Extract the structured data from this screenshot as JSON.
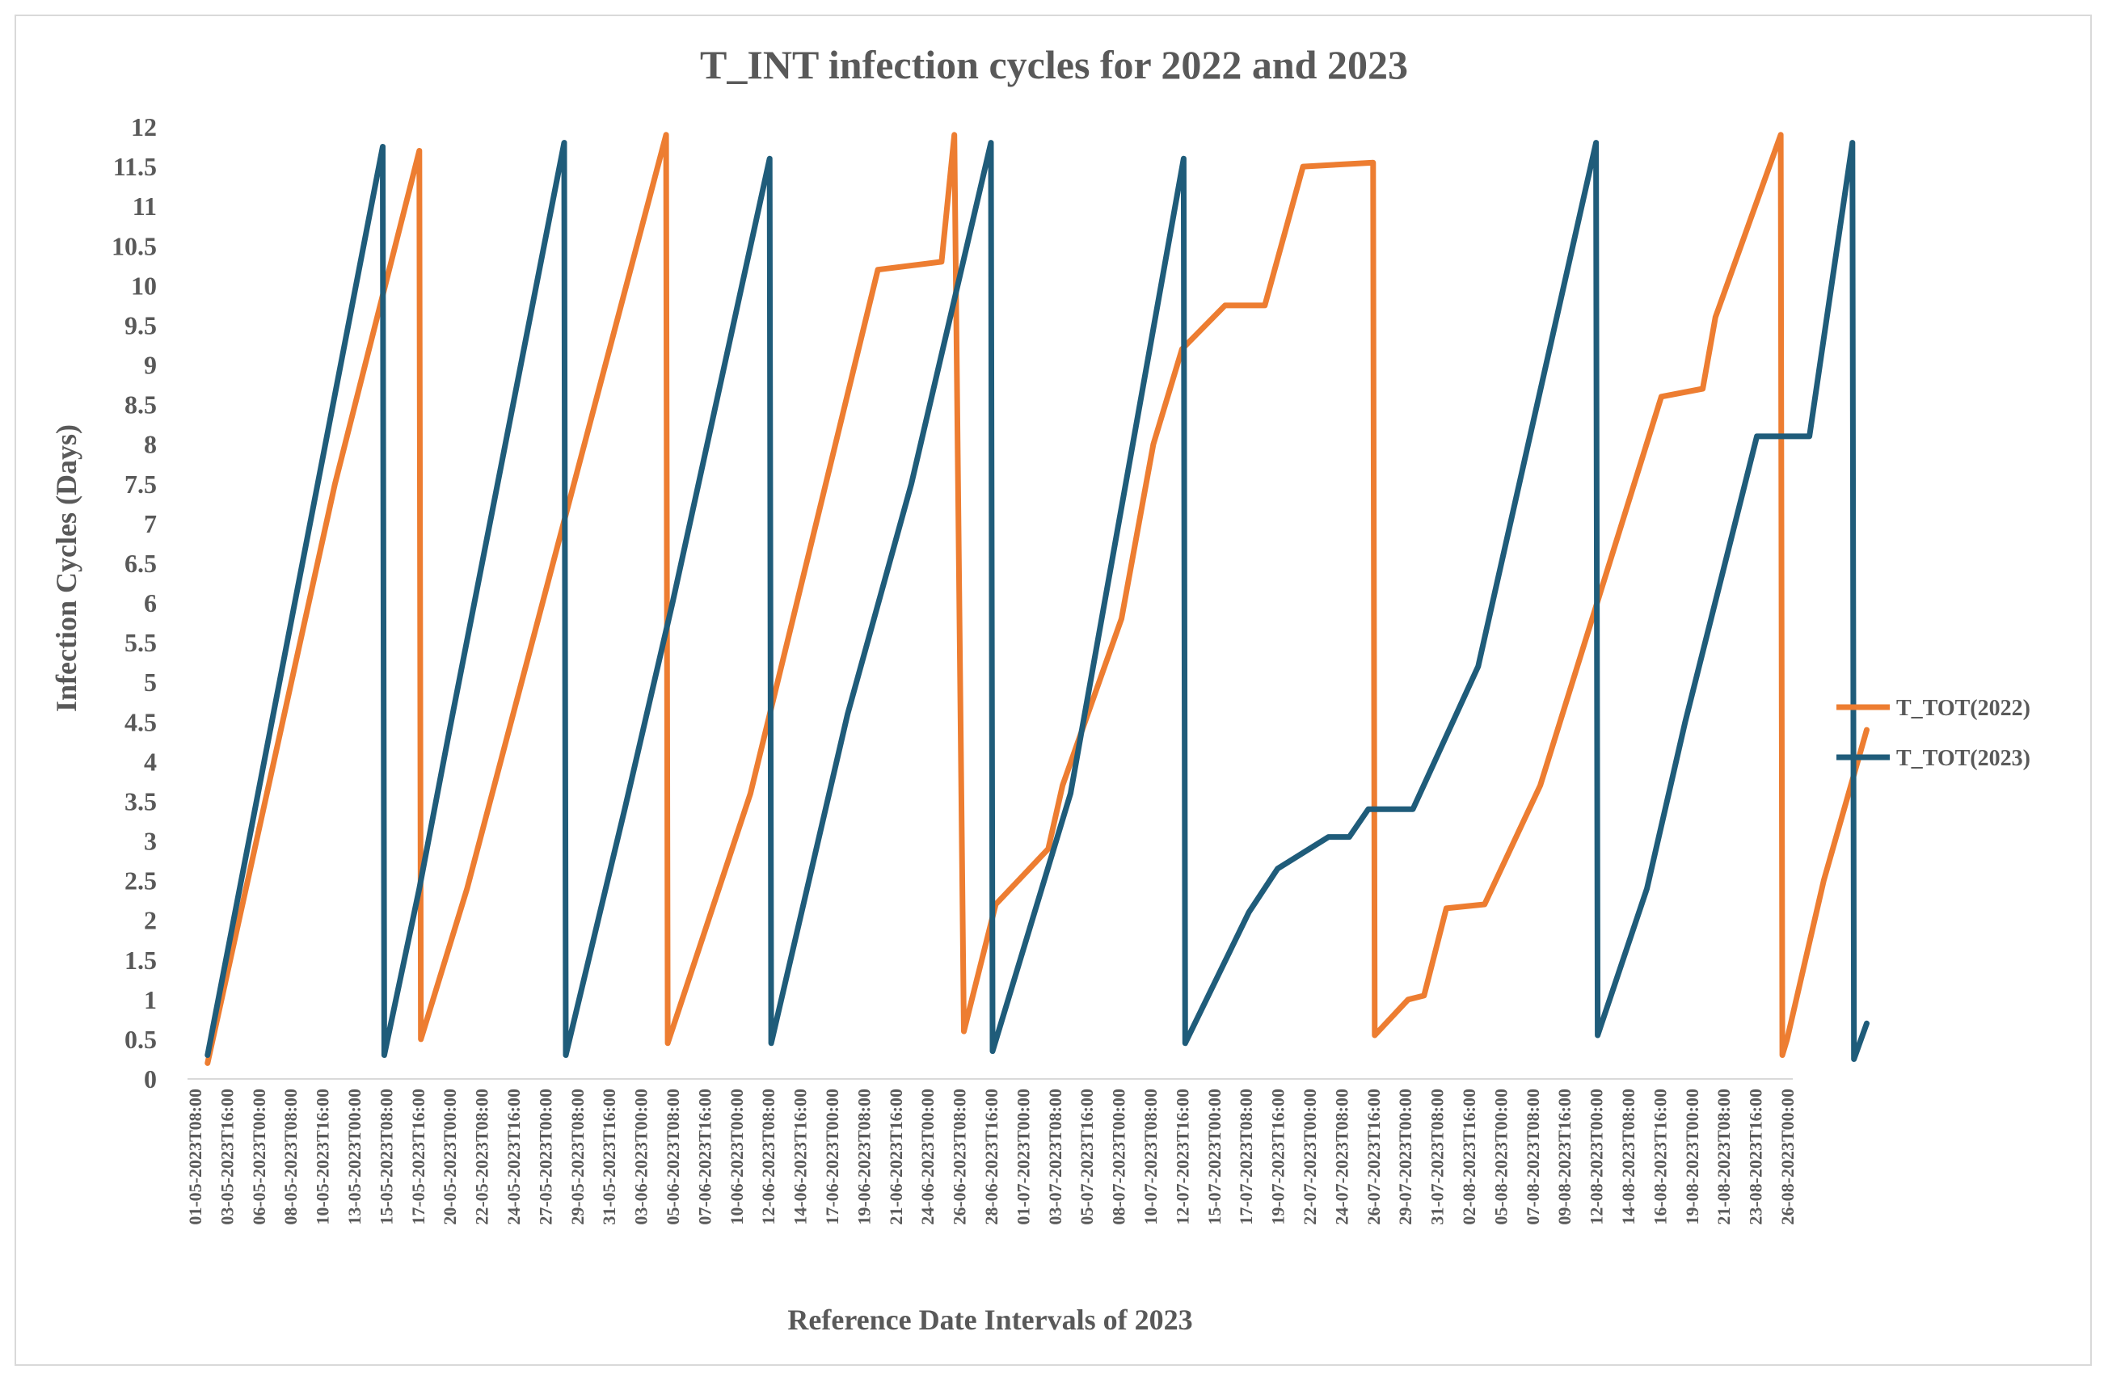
{
  "chart_data": {
    "type": "line",
    "title": "T_INT infection cycles for 2022 and 2023",
    "xlabel": "Reference Date Intervals of 2023",
    "ylabel": "Infection Cycles (Days)",
    "ylim": [
      0,
      12
    ],
    "yticks": [
      "0",
      "0.5",
      "1",
      "1.5",
      "2",
      "2.5",
      "3",
      "3.5",
      "4",
      "4.5",
      "5",
      "5.5",
      "6",
      "6.5",
      "7",
      "7.5",
      "8",
      "8.5",
      "9",
      "9.5",
      "10",
      "10.5",
      "11",
      "11.5",
      "12"
    ],
    "grid": false,
    "legend_position": "right",
    "x_domain": [
      0,
      100
    ],
    "x_ticks": [
      {
        "x": 0,
        "label": "01-05-2023T08:00"
      },
      {
        "x": 2,
        "label": "03-05-2023T16:00"
      },
      {
        "x": 4,
        "label": "06-05-2023T00:00"
      },
      {
        "x": 6,
        "label": "08-05-2023T08:00"
      },
      {
        "x": 8,
        "label": "10-05-2023T16:00"
      },
      {
        "x": 10,
        "label": "13-05-2023T00:00"
      },
      {
        "x": 12,
        "label": "15-05-2023T08:00"
      },
      {
        "x": 14,
        "label": "17-05-2023T16:00"
      },
      {
        "x": 16,
        "label": "20-05-2023T00:00"
      },
      {
        "x": 18,
        "label": "22-05-2023T08:00"
      },
      {
        "x": 20,
        "label": "24-05-2023T16:00"
      },
      {
        "x": 22,
        "label": "27-05-2023T00:00"
      },
      {
        "x": 24,
        "label": "29-05-2023T08:00"
      },
      {
        "x": 26,
        "label": "31-05-2023T16:00"
      },
      {
        "x": 28,
        "label": "03-06-2023T00:00"
      },
      {
        "x": 30,
        "label": "05-06-2023T08:00"
      },
      {
        "x": 32,
        "label": "07-06-2023T16:00"
      },
      {
        "x": 34,
        "label": "10-06-2023T00:00"
      },
      {
        "x": 36,
        "label": "12-06-2023T08:00"
      },
      {
        "x": 38,
        "label": "14-06-2023T16:00"
      },
      {
        "x": 40,
        "label": "17-06-2023T00:00"
      },
      {
        "x": 42,
        "label": "19-06-2023T08:00"
      },
      {
        "x": 44,
        "label": "21-06-2023T16:00"
      },
      {
        "x": 46,
        "label": "24-06-2023T00:00"
      },
      {
        "x": 48,
        "label": "26-06-2023T08:00"
      },
      {
        "x": 50,
        "label": "28-06-2023T16:00"
      },
      {
        "x": 52,
        "label": "01-07-2023T00:00"
      },
      {
        "x": 54,
        "label": "03-07-2023T08:00"
      },
      {
        "x": 56,
        "label": "05-07-2023T16:00"
      },
      {
        "x": 58,
        "label": "08-07-2023T00:00"
      },
      {
        "x": 60,
        "label": "10-07-2023T08:00"
      },
      {
        "x": 62,
        "label": "12-07-2023T16:00"
      },
      {
        "x": 64,
        "label": "15-07-2023T00:00"
      },
      {
        "x": 66,
        "label": "17-07-2023T08:00"
      },
      {
        "x": 68,
        "label": "19-07-2023T16:00"
      },
      {
        "x": 70,
        "label": "22-07-2023T00:00"
      },
      {
        "x": 72,
        "label": "24-07-2023T08:00"
      },
      {
        "x": 74,
        "label": "26-07-2023T16:00"
      },
      {
        "x": 76,
        "label": "29-07-2023T00:00"
      },
      {
        "x": 78,
        "label": "31-07-2023T08:00"
      },
      {
        "x": 80,
        "label": "02-08-2023T16:00"
      },
      {
        "x": 82,
        "label": "05-08-2023T00:00"
      },
      {
        "x": 84,
        "label": "07-08-2023T08:00"
      },
      {
        "x": 86,
        "label": "09-08-2023T16:00"
      },
      {
        "x": 88,
        "label": "12-08-2023T00:00"
      },
      {
        "x": 90,
        "label": "14-08-2023T08:00"
      },
      {
        "x": 92,
        "label": "16-08-2023T16:00"
      },
      {
        "x": 94,
        "label": "19-08-2023T00:00"
      },
      {
        "x": 96,
        "label": "21-08-2023T08:00"
      },
      {
        "x": 98,
        "label": "23-08-2023T16:00"
      },
      {
        "x": 100,
        "label": "26-08-2023T00:00"
      }
    ],
    "series": [
      {
        "name": "T_TOT(2022)",
        "color": "#ED7D31",
        "points": [
          [
            0.8,
            0.2
          ],
          [
            8.8,
            7.5
          ],
          [
            14.1,
            11.7
          ],
          [
            14.2,
            0.5
          ],
          [
            17.1,
            2.4
          ],
          [
            29.6,
            11.9
          ],
          [
            29.7,
            0.45
          ],
          [
            34.9,
            3.6
          ],
          [
            42.9,
            10.2
          ],
          [
            46.9,
            10.3
          ],
          [
            47.7,
            11.9
          ],
          [
            48.3,
            0.6
          ],
          [
            50.3,
            2.2
          ],
          [
            53.6,
            2.9
          ],
          [
            54.5,
            3.7
          ],
          [
            58.2,
            5.8
          ],
          [
            60.2,
            8.0
          ],
          [
            62.0,
            9.2
          ],
          [
            64.7,
            9.75
          ],
          [
            67.2,
            9.75
          ],
          [
            69.6,
            11.5
          ],
          [
            74.0,
            11.55
          ],
          [
            74.1,
            0.55
          ],
          [
            76.2,
            1.0
          ],
          [
            77.2,
            1.05
          ],
          [
            78.6,
            2.15
          ],
          [
            81.0,
            2.2
          ],
          [
            84.5,
            3.7
          ],
          [
            92.1,
            8.6
          ],
          [
            94.7,
            8.7
          ],
          [
            95.5,
            9.6
          ],
          [
            99.6,
            11.9
          ],
          [
            99.7,
            0.3
          ],
          [
            100.0,
            0.5
          ],
          [
            102.3,
            2.5
          ],
          [
            105.0,
            4.4
          ]
        ]
      },
      {
        "name": "T_TOT(2023)",
        "color": "#1F5C7A",
        "points": [
          [
            0.8,
            0.3
          ],
          [
            11.8,
            11.75
          ],
          [
            11.9,
            0.3
          ],
          [
            14.1,
            2.4
          ],
          [
            16.0,
            4.4
          ],
          [
            23.2,
            11.8
          ],
          [
            23.3,
            0.3
          ],
          [
            27.0,
            3.4
          ],
          [
            30.0,
            6.0
          ],
          [
            36.1,
            11.6
          ],
          [
            36.2,
            0.45
          ],
          [
            41.0,
            4.6
          ],
          [
            45.0,
            7.5
          ],
          [
            50.0,
            11.8
          ],
          [
            50.1,
            0.35
          ],
          [
            55.0,
            3.6
          ],
          [
            62.1,
            11.6
          ],
          [
            62.2,
            0.45
          ],
          [
            66.2,
            2.1
          ],
          [
            68.0,
            2.65
          ],
          [
            71.2,
            3.05
          ],
          [
            72.5,
            3.05
          ],
          [
            73.7,
            3.4
          ],
          [
            76.5,
            3.4
          ],
          [
            80.6,
            5.2
          ],
          [
            88.0,
            11.8
          ],
          [
            88.1,
            0.55
          ],
          [
            91.2,
            2.4
          ],
          [
            93.6,
            4.5
          ],
          [
            98.1,
            8.1
          ],
          [
            101.4,
            8.1
          ],
          [
            104.1,
            11.8
          ],
          [
            104.2,
            0.25
          ],
          [
            105.0,
            0.7
          ]
        ]
      }
    ]
  }
}
